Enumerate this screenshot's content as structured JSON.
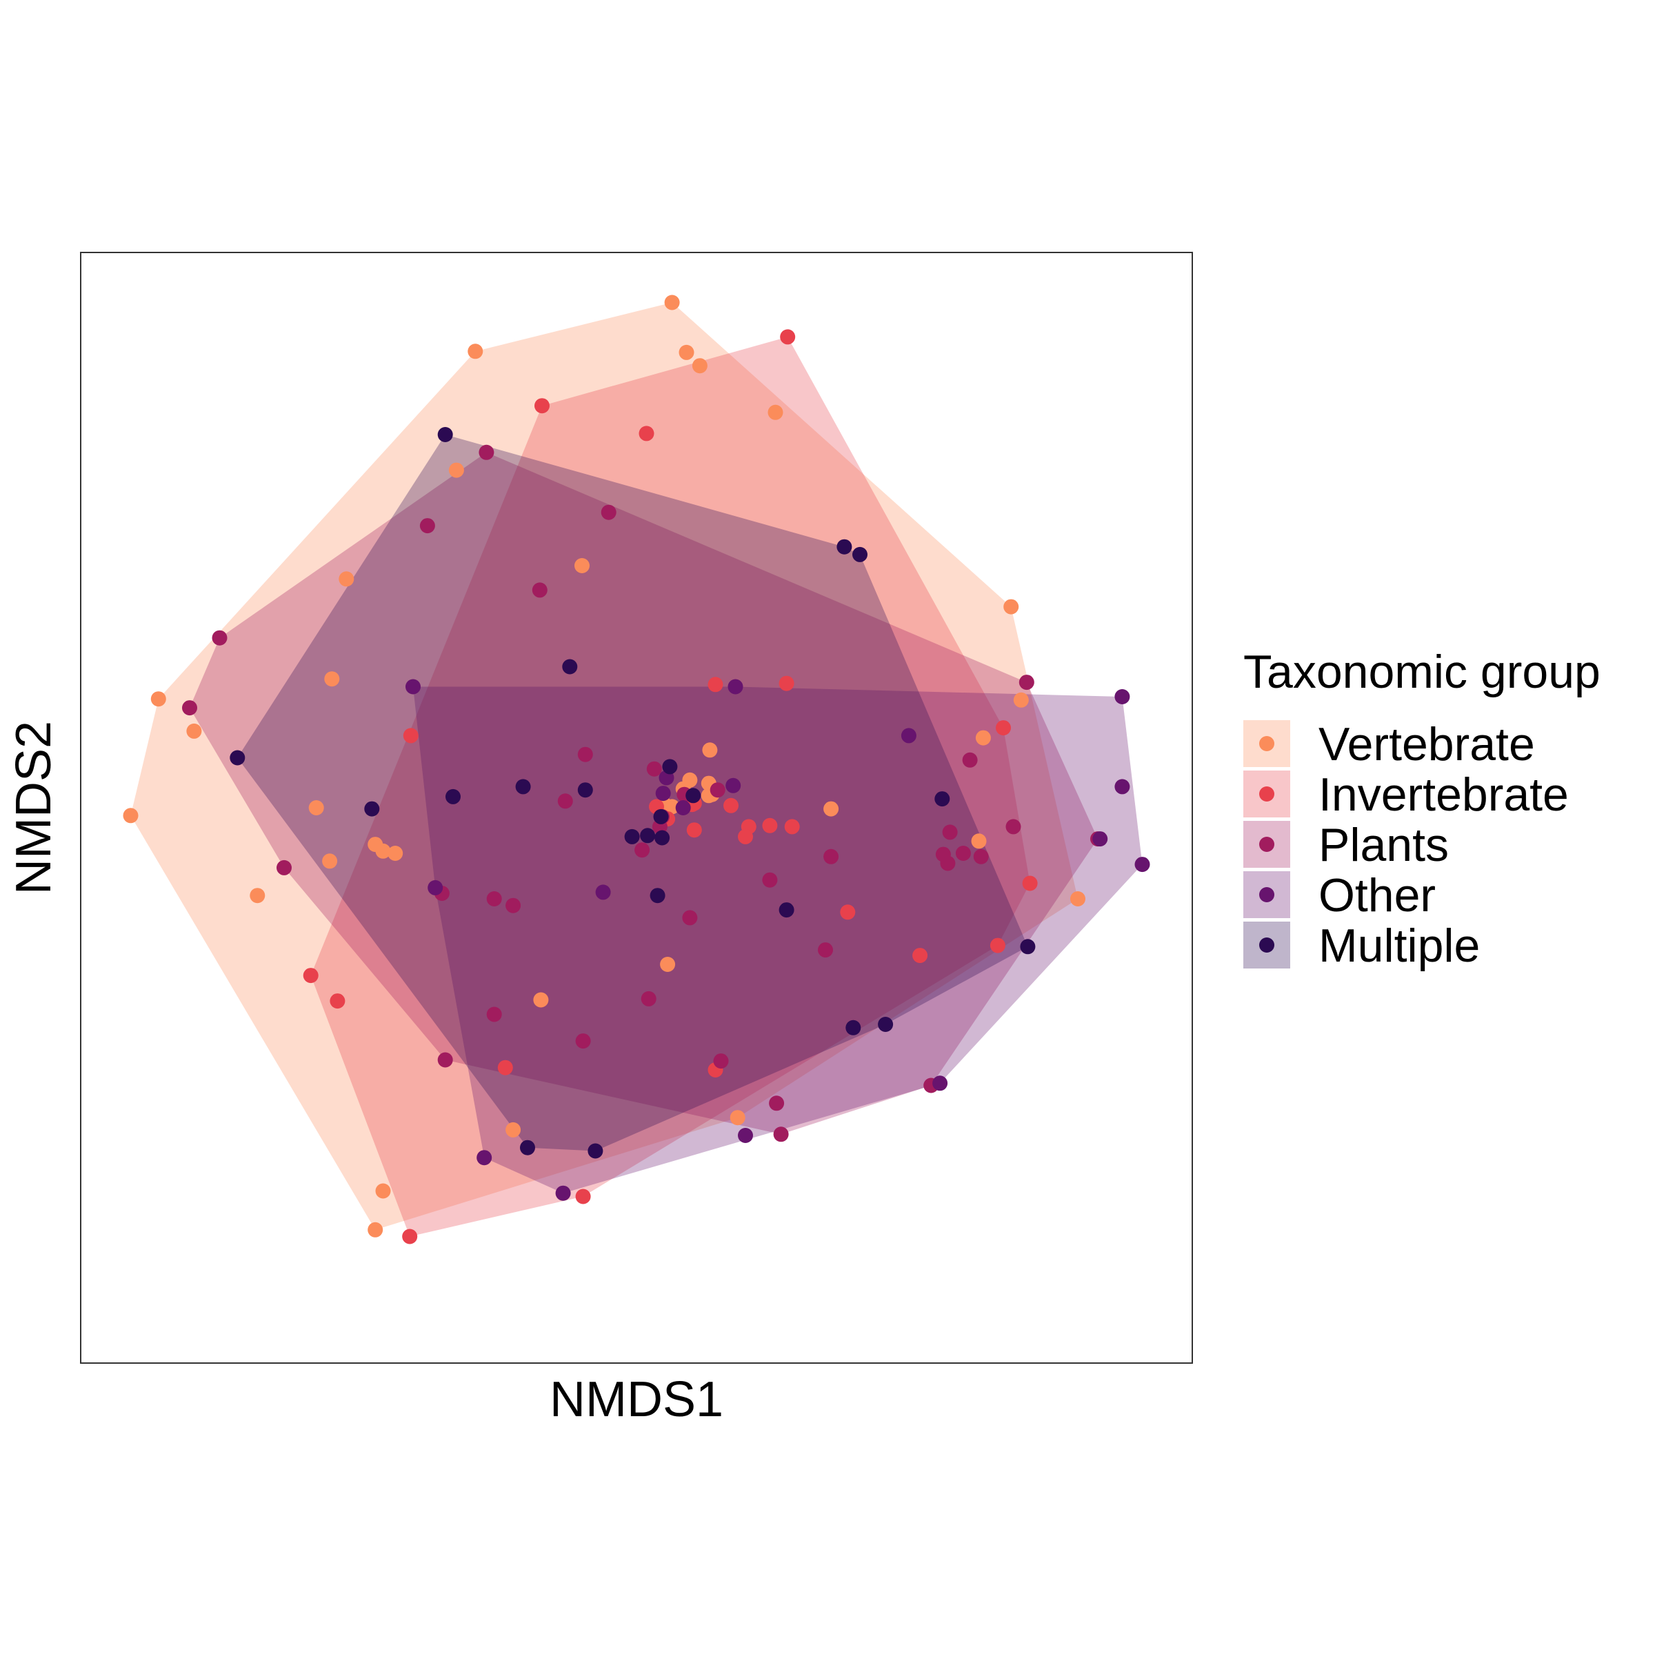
{
  "chart_data": {
    "type": "scatter",
    "title": "",
    "xlabel": "NMDS1",
    "ylabel": "NMDS2",
    "xlim": [
      0,
      1000
    ],
    "ylim": [
      0,
      1000
    ],
    "axis_ticks": "none",
    "grid": false,
    "hulls": "convex hull per group, filled",
    "legend": {
      "title": "Taxonomic group",
      "position": "right",
      "items": [
        "Vertebrate",
        "Invertebrate",
        "Plants",
        "Other",
        "Multiple"
      ]
    },
    "series": [
      {
        "name": "Vertebrate",
        "color": "#fb8c5a",
        "points": [
          [
            532,
            955
          ],
          [
            355,
            911
          ],
          [
            545,
            910
          ],
          [
            557,
            898
          ],
          [
            625,
            856
          ],
          [
            338,
            804
          ],
          [
            837,
            681
          ],
          [
            239,
            706
          ],
          [
            45,
            493
          ],
          [
            70,
            598
          ],
          [
            102,
            569
          ],
          [
            451,
            718
          ],
          [
            226,
            616
          ],
          [
            675,
            499
          ],
          [
            808,
            470
          ],
          [
            812,
            563
          ],
          [
            566,
            552
          ],
          [
            565,
            522
          ],
          [
            224,
            452
          ],
          [
            265,
            467
          ],
          [
            283,
            459
          ],
          [
            528,
            359
          ],
          [
            414,
            327
          ],
          [
            591,
            221
          ],
          [
            389,
            210
          ],
          [
            272,
            155
          ],
          [
            265,
            120
          ],
          [
            897,
            418
          ],
          [
            846,
            597
          ],
          [
            565,
            511
          ],
          [
            542,
            517
          ],
          [
            548,
            525
          ],
          [
            525,
            503
          ],
          [
            212,
            500
          ],
          [
            532,
            501
          ],
          [
            568,
            512
          ],
          [
            272,
            461
          ],
          [
            159,
            421
          ]
        ]
      },
      {
        "name": "Invertebrate",
        "color": "#e8414c",
        "points": [
          [
            636,
            924
          ],
          [
            415,
            862
          ],
          [
            509,
            837
          ],
          [
            635,
            612
          ],
          [
            297,
            565
          ],
          [
            571,
            611
          ],
          [
            830,
            572
          ],
          [
            518,
            501
          ],
          [
            552,
            504
          ],
          [
            854,
            432
          ],
          [
            825,
            376
          ],
          [
            755,
            367
          ],
          [
            690,
            406
          ],
          [
            231,
            326
          ],
          [
            452,
            150
          ],
          [
            296,
            114
          ],
          [
            571,
            264
          ],
          [
            382,
            266
          ],
          [
            207,
            349
          ],
          [
            550,
            503
          ],
          [
            528,
            490
          ],
          [
            585,
            502
          ],
          [
            552,
            480
          ],
          [
            601,
            483
          ],
          [
            620,
            484
          ],
          [
            640,
            483
          ],
          [
            598,
            474
          ]
        ]
      },
      {
        "name": "Plants",
        "color": "#a11c5e",
        "points": [
          [
            365,
            820
          ],
          [
            125,
            653
          ],
          [
            98,
            590
          ],
          [
            312,
            754
          ],
          [
            475,
            766
          ],
          [
            413,
            696
          ],
          [
            454,
            548
          ],
          [
            516,
            535
          ],
          [
            620,
            435
          ],
          [
            325,
            423
          ],
          [
            372,
            418
          ],
          [
            452,
            290
          ],
          [
            328,
            273
          ],
          [
            511,
            328
          ],
          [
            626,
            234
          ],
          [
            630,
            206
          ],
          [
            675,
            456
          ],
          [
            670,
            372
          ],
          [
            548,
            401
          ],
          [
            576,
            272
          ],
          [
            389,
            412
          ],
          [
            183,
            446
          ],
          [
            436,
            506
          ],
          [
            521,
            483
          ],
          [
            543,
            512
          ],
          [
            505,
            462
          ],
          [
            523,
            492
          ],
          [
            780,
            450
          ],
          [
            810,
            456
          ],
          [
            800,
            543
          ],
          [
            782,
            478
          ],
          [
            851,
            613
          ],
          [
            915,
            472
          ],
          [
            839,
            483
          ],
          [
            794,
            459
          ],
          [
            765,
            250
          ],
          [
            776,
            458
          ],
          [
            573,
            516
          ],
          [
            372,
            314
          ]
        ]
      },
      {
        "name": "Other",
        "color": "#67146e",
        "points": [
          [
            937,
            600
          ],
          [
            955,
            449
          ],
          [
            917,
            472
          ],
          [
            937,
            519
          ],
          [
            299,
            609
          ],
          [
            589,
            609
          ],
          [
            745,
            565
          ],
          [
            363,
            185
          ],
          [
            434,
            153
          ],
          [
            598,
            205
          ],
          [
            773,
            252
          ],
          [
            470,
            424
          ],
          [
            319,
            428
          ],
          [
            524,
            513
          ],
          [
            587,
            520
          ],
          [
            542,
            500
          ],
          [
            527,
            527
          ]
        ]
      },
      {
        "name": "Multiple",
        "color": "#2b0a52",
        "points": [
          [
            328,
            836
          ],
          [
            687,
            735
          ],
          [
            701,
            728
          ],
          [
            440,
            627
          ],
          [
            141,
            545
          ],
          [
            262,
            499
          ],
          [
            335,
            510
          ],
          [
            551,
            511
          ],
          [
            454,
            516
          ],
          [
            530,
            537
          ],
          [
            398,
            519
          ],
          [
            523,
            473
          ],
          [
            635,
            408
          ],
          [
            852,
            375
          ],
          [
            695,
            302
          ],
          [
            402,
            194
          ],
          [
            463,
            191
          ],
          [
            724,
            305
          ],
          [
            775,
            508
          ],
          [
            519,
            421
          ],
          [
            496,
            474
          ],
          [
            522,
            492
          ],
          [
            510,
            475
          ]
        ]
      }
    ]
  }
}
